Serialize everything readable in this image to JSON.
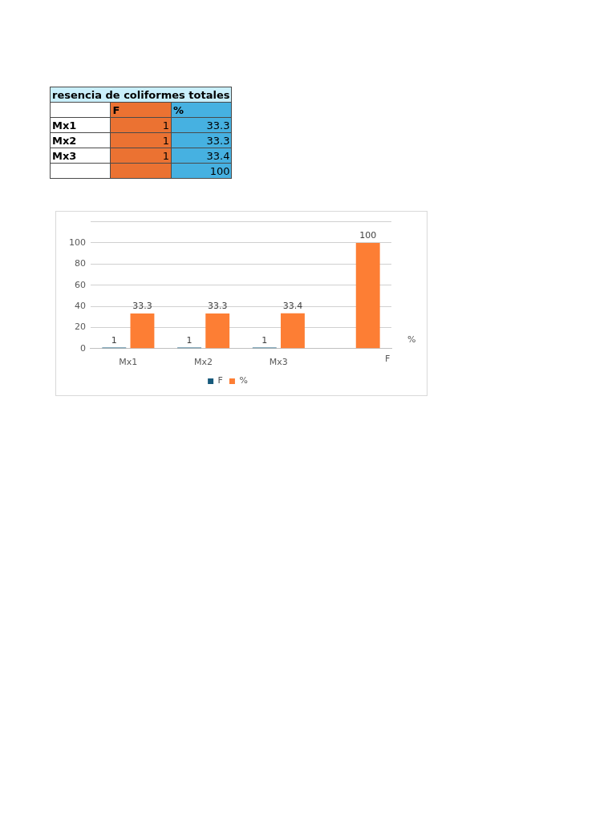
{
  "chart_data": [
    {
      "type": "other",
      "title": "resencia de coliformes totales",
      "categories": [
        "Mx1",
        "Mx2",
        "Mx3"
      ],
      "series": [
        {
          "name": "F",
          "color": "#eb7232",
          "values": [
            1,
            1,
            1
          ]
        },
        {
          "name": "%",
          "color": "#46b1e1",
          "values": [
            33.3,
            33.3,
            33.4
          ]
        }
      ],
      "data_labels": true,
      "annotations": [
        "100"
      ]
    },
    {
      "type": "bar",
      "categories": [
        "Mx1",
        "Mx2",
        "Mx3",
        null
      ],
      "series": [
        {
          "name": "F",
          "color": "#175a7c",
          "values": [
            1,
            1,
            1,
            null
          ]
        },
        {
          "name": "%",
          "color": "#fd7e34",
          "values": [
            33.3,
            33.3,
            33.4,
            100
          ]
        }
      ],
      "ylim": [
        0,
        120
      ],
      "yticks": [
        0,
        20,
        40,
        60,
        80,
        100,
        {
          "value": 120,
          "label": null
        }
      ],
      "grid": "y",
      "legend": "bottom",
      "data_labels": true
    }
  ]
}
